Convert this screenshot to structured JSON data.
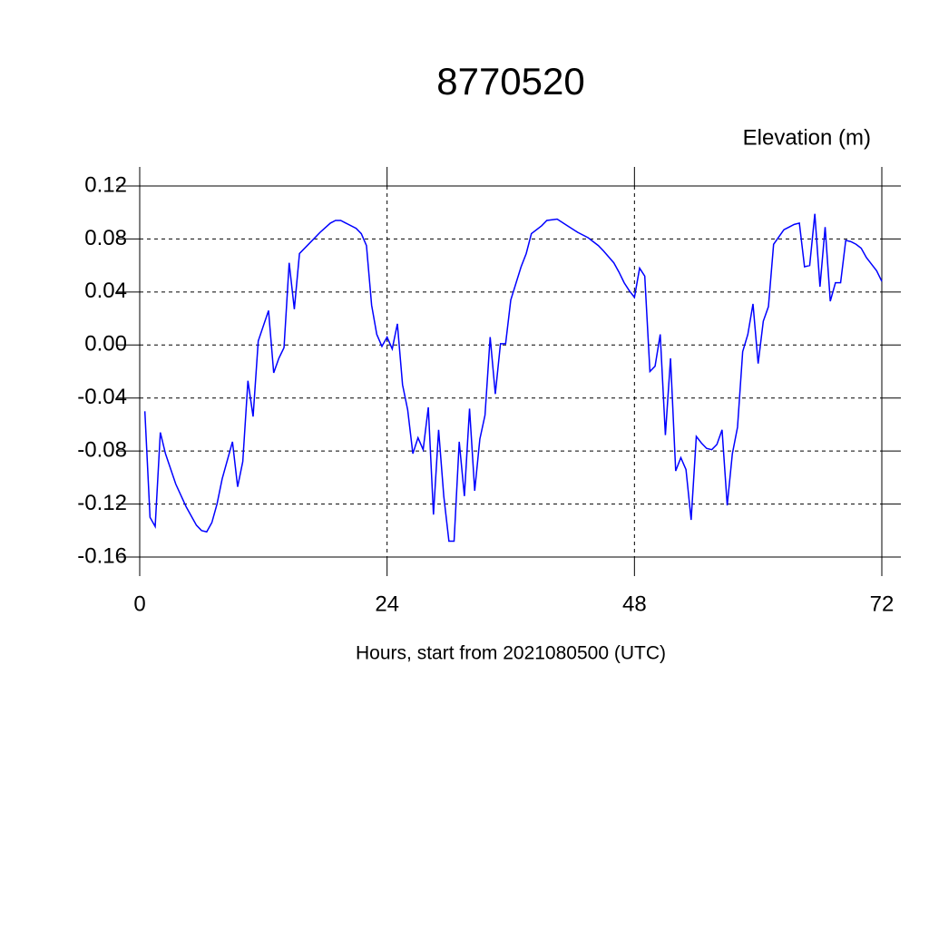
{
  "chart_data": {
    "type": "line",
    "title": "8770520",
    "subtitle": "Elevation (m)",
    "xlabel": "Hours, start from 2021080500 (UTC)",
    "xlim": [
      0,
      72
    ],
    "xticks": [
      0,
      24,
      48,
      72
    ],
    "ylim": [
      -0.16,
      0.12
    ],
    "yticks": [
      -0.16,
      -0.12,
      -0.08,
      -0.04,
      {
        "value": 0,
        "label": "0.00"
      },
      0.04,
      0.08,
      0.12
    ],
    "grid": true,
    "series": [
      {
        "name": "Elevation",
        "color": "#0000ff",
        "x": [
          0.5,
          1,
          1.5,
          2,
          2.5,
          3.5,
          4.5,
          5.5,
          6,
          6.5,
          7,
          7.5,
          8,
          9,
          9.5,
          10,
          10.5,
          11,
          11.5,
          12.5,
          13,
          13.5,
          14,
          14.5,
          15,
          15.5,
          16.5,
          17.5,
          18.5,
          19,
          19.5,
          20,
          21,
          21.5,
          22,
          22.5,
          23,
          23.5,
          24,
          24.5,
          25,
          25.5,
          26,
          26.5,
          27,
          27.5,
          28,
          28.5,
          29,
          29.5,
          30,
          30.5,
          31,
          31.5,
          32,
          32.5,
          33,
          33.5,
          34,
          34.5,
          35,
          35.5,
          36,
          37,
          37.5,
          38,
          39,
          39.5,
          40.5,
          41.5,
          42.5,
          43.5,
          44.5,
          45,
          46,
          46.5,
          47,
          47.5,
          48,
          48.5,
          49,
          49.5,
          50,
          50.5,
          51,
          51.5,
          52,
          52.5,
          53,
          53.5,
          54,
          54.5,
          55,
          55.5,
          56,
          56.5,
          57,
          57.5,
          58,
          58.5,
          59,
          59.5,
          60,
          60.5,
          61,
          61.5,
          62.5,
          63,
          63.5,
          64,
          64.5,
          65,
          65.5,
          66,
          66.5,
          67,
          67.5,
          68,
          68.5,
          69,
          69.5,
          70,
          70.5,
          71,
          71.5,
          72
        ],
        "values": [
          -0.05,
          -0.13,
          -0.137,
          -0.066,
          -0.082,
          -0.105,
          -0.122,
          -0.136,
          -0.14,
          -0.141,
          -0.134,
          -0.12,
          -0.101,
          -0.073,
          -0.107,
          -0.088,
          -0.027,
          -0.054,
          0.003,
          0.026,
          -0.021,
          -0.01,
          -0.002,
          0.062,
          0.027,
          0.069,
          0.077,
          0.085,
          0.092,
          0.094,
          0.094,
          0.092,
          0.088,
          0.084,
          0.075,
          0.03,
          0.008,
          -0.001,
          0.006,
          -0.003,
          0.016,
          -0.03,
          -0.049,
          -0.082,
          -0.07,
          -0.079,
          -0.047,
          -0.128,
          -0.064,
          -0.114,
          -0.148,
          -0.148,
          -0.073,
          -0.114,
          -0.048,
          -0.11,
          -0.071,
          -0.053,
          0.006,
          -0.037,
          0.001,
          0.001,
          0.034,
          0.059,
          0.069,
          0.084,
          0.09,
          0.094,
          0.095,
          0.09,
          0.085,
          0.081,
          0.075,
          0.071,
          0.062,
          0.055,
          0.047,
          0.041,
          0.036,
          0.058,
          0.052,
          -0.02,
          -0.016,
          0.008,
          -0.068,
          -0.01,
          -0.095,
          -0.085,
          -0.094,
          -0.132,
          -0.069,
          -0.074,
          -0.078,
          -0.079,
          -0.075,
          -0.064,
          -0.121,
          -0.082,
          -0.062,
          -0.005,
          0.008,
          0.031,
          -0.014,
          0.018,
          0.029,
          0.076,
          0.087,
          0.089,
          0.091,
          0.092,
          0.059,
          0.06,
          0.099,
          0.044,
          0.089,
          0.033,
          0.047,
          0.047,
          0.079,
          0.078,
          0.076,
          0.073,
          0.066,
          0.061,
          0.056,
          0.048
        ]
      }
    ]
  }
}
